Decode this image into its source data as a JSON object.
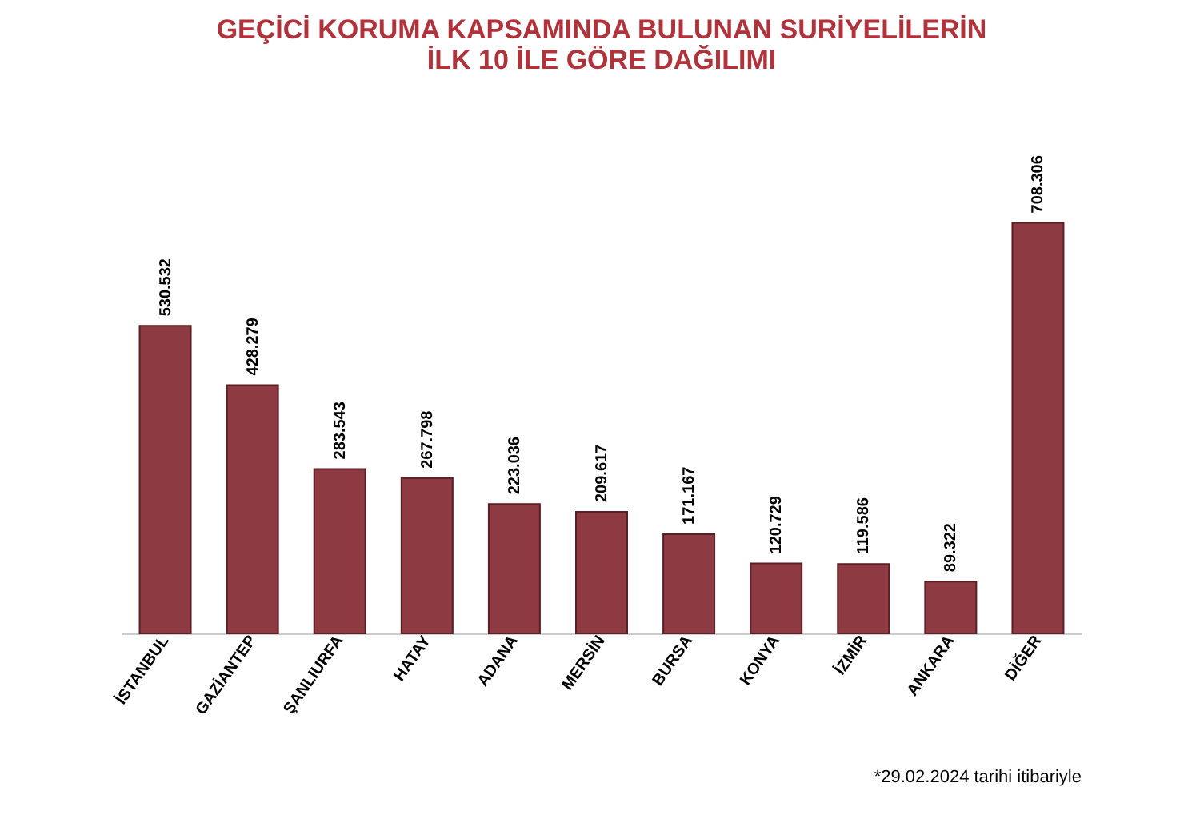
{
  "chart_data": {
    "type": "bar",
    "title": "GEÇİCİ KORUMA KAPSAMINDA BULUNAN SURİYELİLERİN İLK 10 İLE GÖRE DAĞILIMI",
    "categories": [
      "İSTANBUL",
      "GAZİANTEP",
      "ŞANLIURFA",
      "HATAY",
      "ADANA",
      "MERSİN",
      "BURSA",
      "KONYA",
      "İZMİR",
      "ANKARA",
      "DİĞER"
    ],
    "values": [
      530532,
      428279,
      283543,
      267798,
      223036,
      209617,
      171167,
      120729,
      119586,
      89322,
      708306
    ],
    "color": "#8e3a42",
    "value_labels": [
      "530.532",
      "428.279",
      "283.543",
      "267.798",
      "223.036",
      "209.617",
      "171.167",
      "120.729",
      "119.586",
      "89.322",
      "708.306"
    ],
    "grid": false,
    "annotations": [
      "*29.02.2024 tarihi itibariyle"
    ]
  }
}
